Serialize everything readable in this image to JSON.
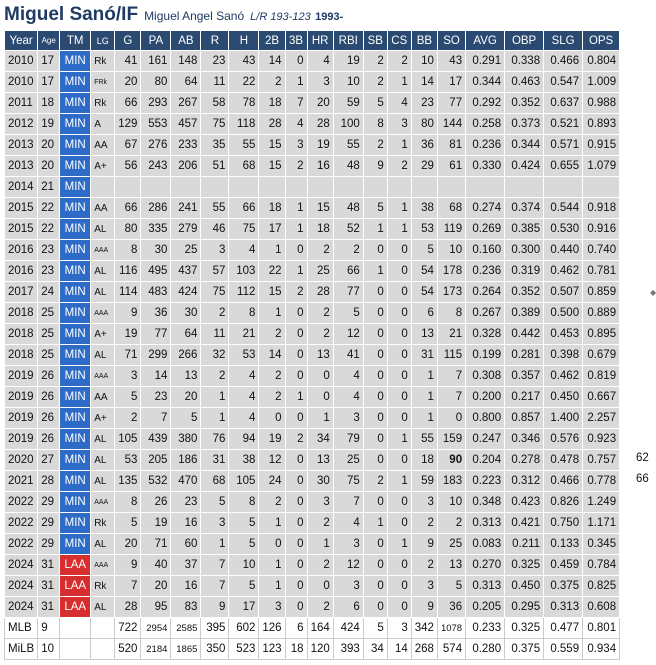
{
  "header": {
    "title": "Miguel Sanó/IF",
    "full_name": "Miguel Angel Sanó",
    "bats_throws": "L/R 193-123",
    "born": "1993-"
  },
  "columns": [
    "Year",
    "Age",
    "TM",
    "LG",
    "G",
    "PA",
    "AB",
    "R",
    "H",
    "2B",
    "3B",
    "HR",
    "RBI",
    "SB",
    "CS",
    "BB",
    "SO",
    "AVG",
    "OBP",
    "SLG",
    "OPS"
  ],
  "rows": [
    [
      "2010",
      "17",
      "MIN",
      "Rk",
      "41",
      "161",
      "148",
      "23",
      "43",
      "14",
      "0",
      "4",
      "19",
      "2",
      "2",
      "10",
      "43",
      "0.291",
      "0.338",
      "0.466",
      "0.804"
    ],
    [
      "2010",
      "17",
      "MIN",
      "FRk",
      "20",
      "80",
      "64",
      "11",
      "22",
      "2",
      "1",
      "3",
      "10",
      "2",
      "1",
      "14",
      "17",
      "0.344",
      "0.463",
      "0.547",
      "1.009"
    ],
    [
      "2011",
      "18",
      "MIN",
      "Rk",
      "66",
      "293",
      "267",
      "58",
      "78",
      "18",
      "7",
      "20",
      "59",
      "5",
      "4",
      "23",
      "77",
      "0.292",
      "0.352",
      "0.637",
      "0.988"
    ],
    [
      "2012",
      "19",
      "MIN",
      "A",
      "129",
      "553",
      "457",
      "75",
      "118",
      "28",
      "4",
      "28",
      "100",
      "8",
      "3",
      "80",
      "144",
      "0.258",
      "0.373",
      "0.521",
      "0.893"
    ],
    [
      "2013",
      "20",
      "MIN",
      "AA",
      "67",
      "276",
      "233",
      "35",
      "55",
      "15",
      "3",
      "19",
      "55",
      "2",
      "1",
      "36",
      "81",
      "0.236",
      "0.344",
      "0.571",
      "0.915"
    ],
    [
      "2013",
      "20",
      "MIN",
      "A+",
      "56",
      "243",
      "206",
      "51",
      "68",
      "15",
      "2",
      "16",
      "48",
      "9",
      "2",
      "29",
      "61",
      "0.330",
      "0.424",
      "0.655",
      "1.079"
    ],
    [
      "2014",
      "21",
      "MIN",
      "",
      "",
      "",
      "",
      "",
      "",
      "",
      "",
      "",
      "",
      "",
      "",
      "",
      "",
      "",
      "",
      "",
      ""
    ],
    [
      "2015",
      "22",
      "MIN",
      "AA",
      "66",
      "286",
      "241",
      "55",
      "66",
      "18",
      "1",
      "15",
      "48",
      "5",
      "1",
      "38",
      "68",
      "0.274",
      "0.374",
      "0.544",
      "0.918"
    ],
    [
      "2015",
      "22",
      "MIN",
      "AL",
      "80",
      "335",
      "279",
      "46",
      "75",
      "17",
      "1",
      "18",
      "52",
      "1",
      "1",
      "53",
      "119",
      "0.269",
      "0.385",
      "0.530",
      "0.916"
    ],
    [
      "2016",
      "23",
      "MIN",
      "AAA",
      "8",
      "30",
      "25",
      "3",
      "4",
      "1",
      "0",
      "2",
      "2",
      "0",
      "0",
      "5",
      "10",
      "0.160",
      "0.300",
      "0.440",
      "0.740"
    ],
    [
      "2016",
      "23",
      "MIN",
      "AL",
      "116",
      "495",
      "437",
      "57",
      "103",
      "22",
      "1",
      "25",
      "66",
      "1",
      "0",
      "54",
      "178",
      "0.236",
      "0.319",
      "0.462",
      "0.781"
    ],
    [
      "2017",
      "24",
      "MIN",
      "AL",
      "114",
      "483",
      "424",
      "75",
      "112",
      "15",
      "2",
      "28",
      "77",
      "0",
      "0",
      "54",
      "173",
      "0.264",
      "0.352",
      "0.507",
      "0.859"
    ],
    [
      "2018",
      "25",
      "MIN",
      "AAA",
      "9",
      "36",
      "30",
      "2",
      "8",
      "1",
      "0",
      "2",
      "5",
      "0",
      "0",
      "6",
      "8",
      "0.267",
      "0.389",
      "0.500",
      "0.889"
    ],
    [
      "2018",
      "25",
      "MIN",
      "A+",
      "19",
      "77",
      "64",
      "11",
      "21",
      "2",
      "0",
      "2",
      "12",
      "0",
      "0",
      "13",
      "21",
      "0.328",
      "0.442",
      "0.453",
      "0.895"
    ],
    [
      "2018",
      "25",
      "MIN",
      "AL",
      "71",
      "299",
      "266",
      "32",
      "53",
      "14",
      "0",
      "13",
      "41",
      "0",
      "0",
      "31",
      "115",
      "0.199",
      "0.281",
      "0.398",
      "0.679"
    ],
    [
      "2019",
      "26",
      "MIN",
      "AAA",
      "3",
      "14",
      "13",
      "2",
      "4",
      "2",
      "0",
      "0",
      "4",
      "0",
      "0",
      "1",
      "7",
      "0.308",
      "0.357",
      "0.462",
      "0.819"
    ],
    [
      "2019",
      "26",
      "MIN",
      "AA",
      "5",
      "23",
      "20",
      "1",
      "4",
      "2",
      "1",
      "0",
      "4",
      "0",
      "0",
      "1",
      "7",
      "0.200",
      "0.217",
      "0.450",
      "0.667"
    ],
    [
      "2019",
      "26",
      "MIN",
      "A+",
      "2",
      "7",
      "5",
      "1",
      "4",
      "0",
      "0",
      "1",
      "3",
      "0",
      "0",
      "1",
      "0",
      "0.800",
      "0.857",
      "1.400",
      "2.257"
    ],
    [
      "2019",
      "26",
      "MIN",
      "AL",
      "105",
      "439",
      "380",
      "76",
      "94",
      "19",
      "2",
      "34",
      "79",
      "0",
      "1",
      "55",
      "159",
      "0.247",
      "0.346",
      "0.576",
      "0.923"
    ],
    [
      "2020",
      "27",
      "MIN",
      "AL",
      "53",
      "205",
      "186",
      "31",
      "38",
      "12",
      "0",
      "13",
      "25",
      "0",
      "0",
      "18",
      "90",
      "0.204",
      "0.278",
      "0.478",
      "0.757"
    ],
    [
      "2021",
      "28",
      "MIN",
      "AL",
      "135",
      "532",
      "470",
      "68",
      "105",
      "24",
      "0",
      "30",
      "75",
      "2",
      "1",
      "59",
      "183",
      "0.223",
      "0.312",
      "0.466",
      "0.778"
    ],
    [
      "2022",
      "29",
      "MIN",
      "AAA",
      "8",
      "26",
      "23",
      "5",
      "8",
      "2",
      "0",
      "3",
      "7",
      "0",
      "0",
      "3",
      "10",
      "0.348",
      "0.423",
      "0.826",
      "1.249"
    ],
    [
      "2022",
      "29",
      "MIN",
      "Rk",
      "5",
      "19",
      "16",
      "3",
      "5",
      "1",
      "0",
      "2",
      "4",
      "1",
      "0",
      "2",
      "2",
      "0.313",
      "0.421",
      "0.750",
      "1.171"
    ],
    [
      "2022",
      "29",
      "MIN",
      "AL",
      "20",
      "71",
      "60",
      "1",
      "5",
      "0",
      "0",
      "1",
      "3",
      "0",
      "1",
      "9",
      "25",
      "0.083",
      "0.211",
      "0.133",
      "0.345"
    ],
    [
      "2024",
      "31",
      "LAA",
      "AAA",
      "9",
      "40",
      "37",
      "7",
      "10",
      "1",
      "0",
      "2",
      "12",
      "0",
      "0",
      "2",
      "13",
      "0.270",
      "0.325",
      "0.459",
      "0.784"
    ],
    [
      "2024",
      "31",
      "LAA",
      "Rk",
      "7",
      "20",
      "16",
      "7",
      "5",
      "1",
      "0",
      "0",
      "3",
      "0",
      "0",
      "3",
      "5",
      "0.313",
      "0.450",
      "0.375",
      "0.825"
    ],
    [
      "2024",
      "31",
      "LAA",
      "AL",
      "28",
      "95",
      "83",
      "9",
      "17",
      "3",
      "0",
      "2",
      "6",
      "0",
      "0",
      "9",
      "36",
      "0.205",
      "0.295",
      "0.313",
      "0.608"
    ]
  ],
  "totals": [
    [
      "MLB",
      "9",
      "",
      "",
      "722",
      "2954",
      "2585",
      "395",
      "602",
      "126",
      "6",
      "164",
      "424",
      "5",
      "3",
      "342",
      "1078",
      "0.233",
      "0.325",
      "0.477",
      "0.801"
    ],
    [
      "MiLB",
      "10",
      "",
      "",
      "520",
      "2184",
      "1865",
      "350",
      "523",
      "123",
      "18",
      "120",
      "393",
      "34",
      "14",
      "268",
      "574",
      "0.280",
      "0.375",
      "0.559",
      "0.934"
    ]
  ],
  "extras": {
    "r2020": "62",
    "r2021": "66"
  },
  "colors": {
    "header_bg": "#2a4a72",
    "min": "#2e6bc7",
    "laa": "#d62e2e",
    "row_bg": "#d9d9d9"
  }
}
